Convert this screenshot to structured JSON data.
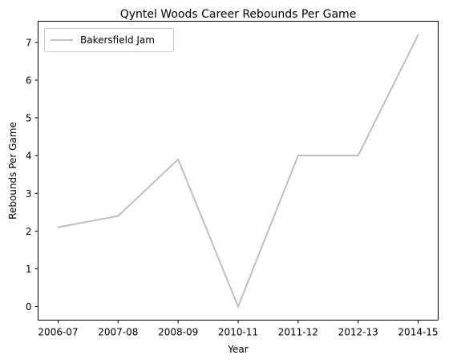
{
  "chart_data": {
    "type": "line",
    "title": "Qyntel Woods Career Rebounds Per Game",
    "xlabel": "Year",
    "ylabel": "Rebounds Per Game",
    "categories": [
      "2006-07",
      "2007-08",
      "2008-09",
      "2010-11",
      "2011-12",
      "2012-13",
      "2014-15"
    ],
    "series": [
      {
        "name": "Bakersfield Jam",
        "values": [
          2.1,
          2.4,
          3.9,
          0.0,
          4.0,
          4.0,
          7.2
        ],
        "color": "#bfbfbf"
      }
    ],
    "yticks": [
      0,
      1,
      2,
      3,
      4,
      5,
      6,
      7
    ],
    "ylim": [
      -0.36,
      7.56
    ],
    "grid": false,
    "legend": "top-left"
  }
}
